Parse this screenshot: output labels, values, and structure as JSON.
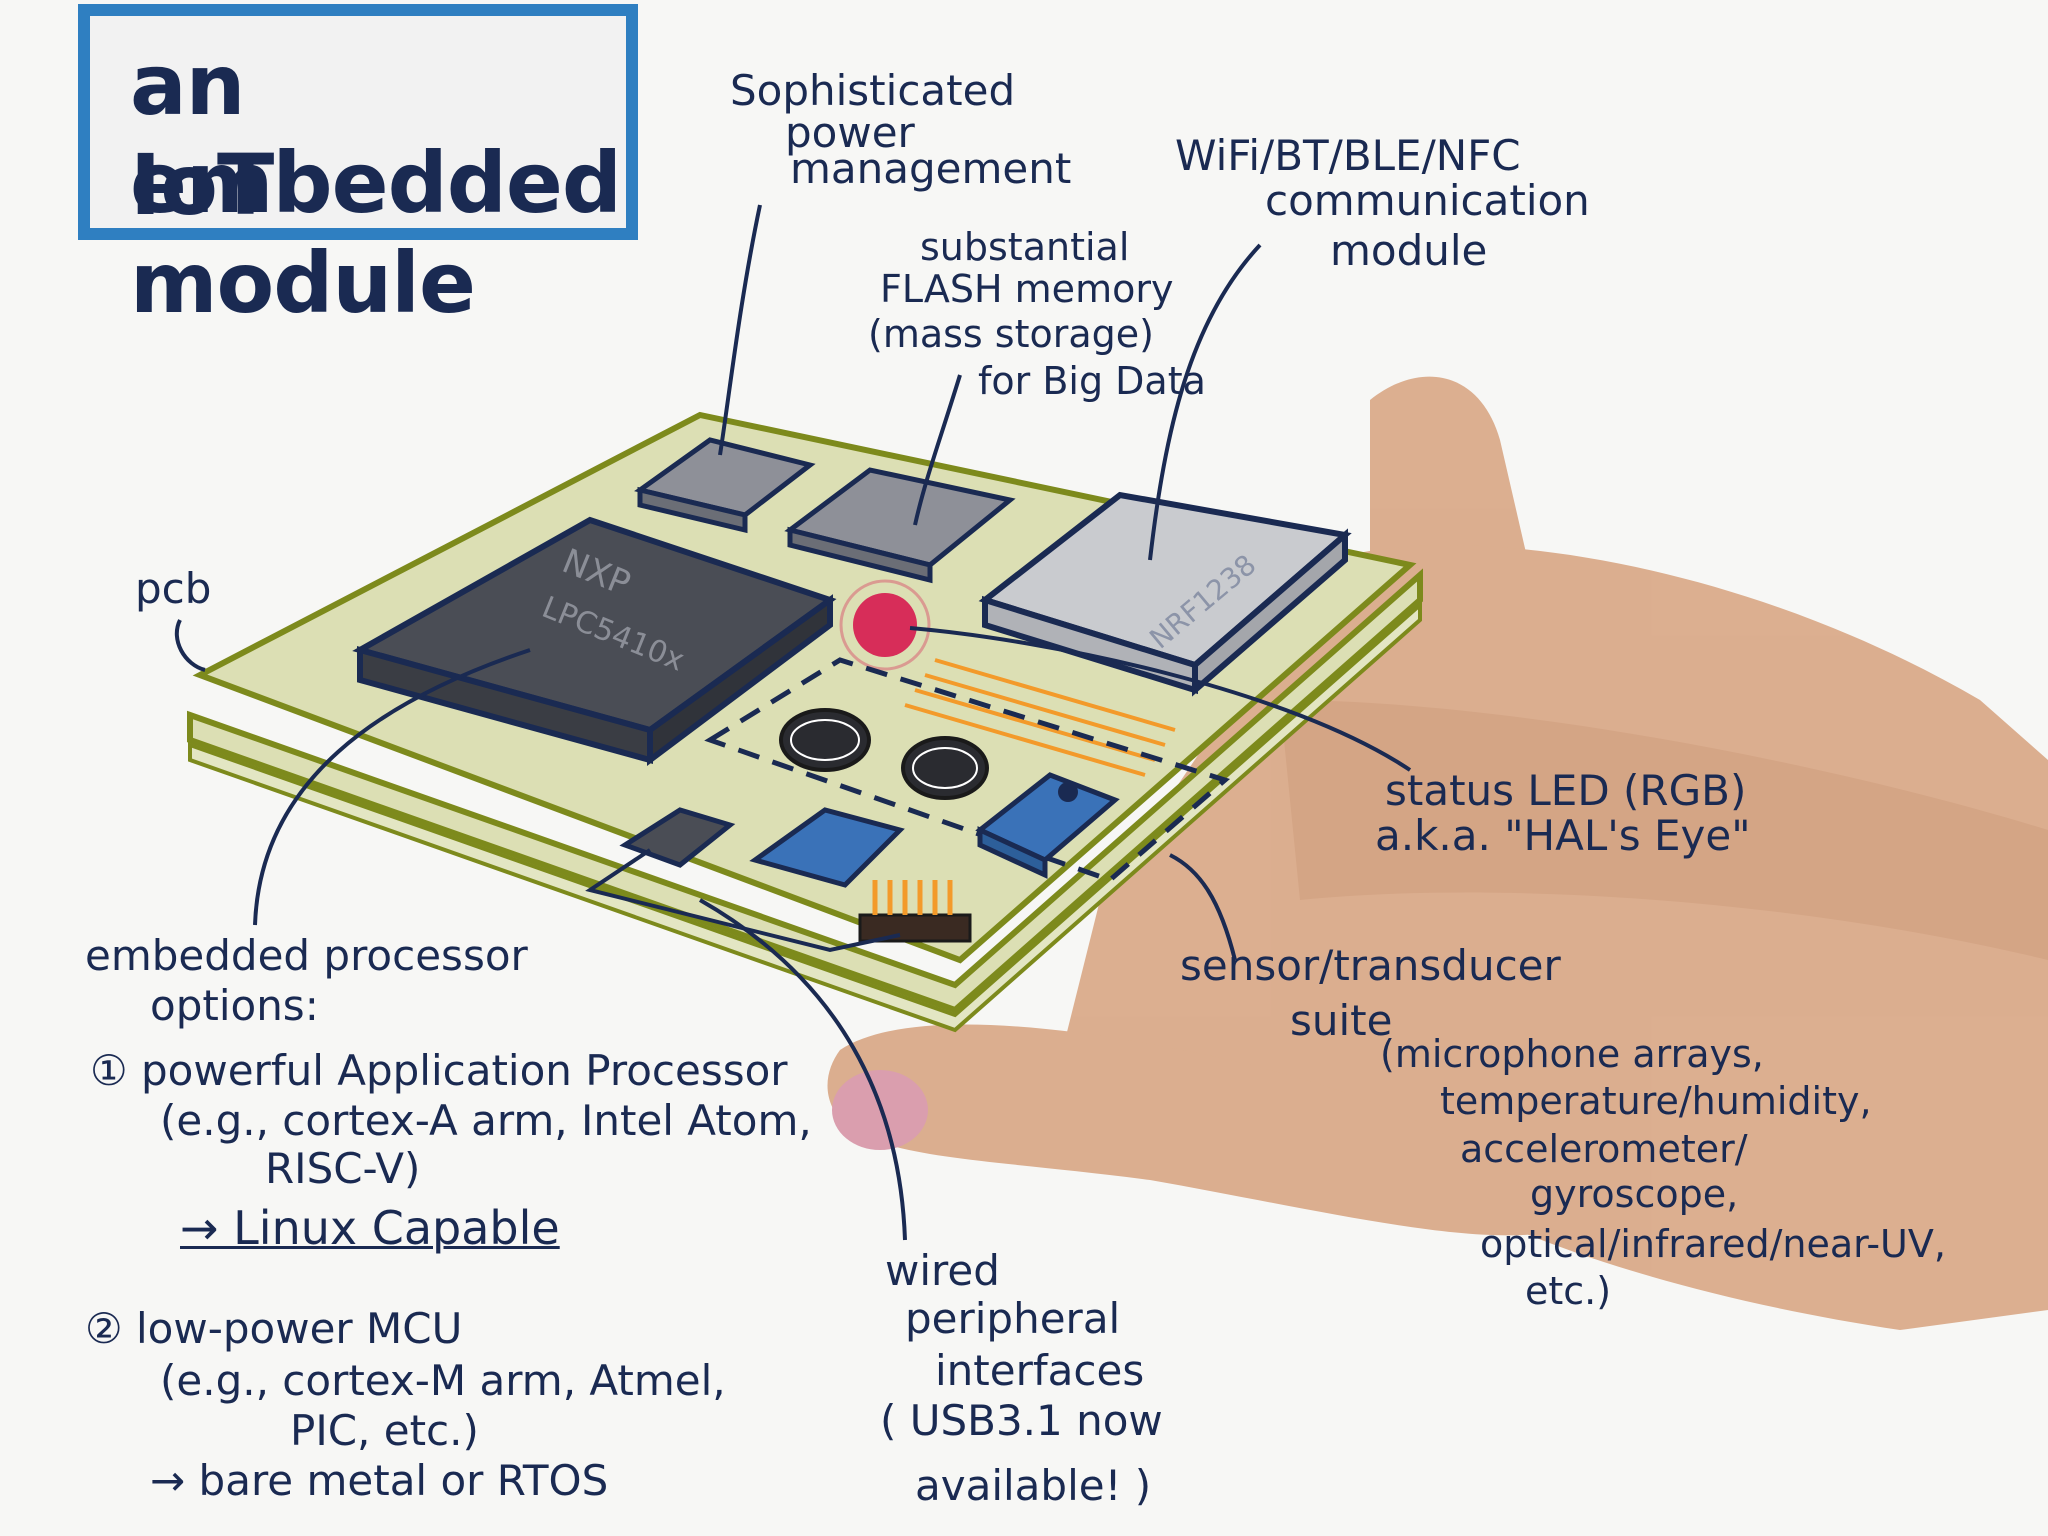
{
  "title": {
    "line1": "an embedded",
    "line2": "IoT module"
  },
  "labels": {
    "power_management": [
      "Sophisticated",
      "power",
      "management"
    ],
    "wifi_module": [
      "WiFi/BT/BLE/NFC",
      "communication",
      "module"
    ],
    "flash_memory": [
      "substantial",
      "FLASH memory",
      "(mass storage)",
      "for Big Data"
    ],
    "pcb": "pcb",
    "status_led": [
      "status LED (RGB)",
      "a.k.a. \"HAL's Eye\""
    ],
    "sensor_suite": [
      "sensor/transducer",
      "suite",
      "(microphone arrays,",
      "temperature/humidity,",
      "accelerometer/",
      "gyroscope,",
      "optical/infrared/near-UV,",
      "etc.)"
    ],
    "processor_heading": [
      "embedded processor",
      "options:"
    ],
    "option1": [
      "① powerful Application Processor",
      "(e.g., cortex-A arm, Intel Atom,",
      "RISC-V)",
      "→ Linux Capable"
    ],
    "option2": [
      "② low-power MCU",
      "(e.g., cortex-M arm, Atmel,",
      "PIC, etc.)",
      "→ bare metal or RTOS"
    ],
    "wired": [
      "wired",
      "peripheral",
      "interfaces",
      "( USB3.1 now",
      "available! )"
    ]
  },
  "chip_text": {
    "processor_brand": "NXP",
    "processor_part": "LPC5410x",
    "radio_part": "NRF1238"
  },
  "colors": {
    "ink": "#1a2a52",
    "title_border": "#2f7fc1",
    "pcb_fill": "#dcdfb4",
    "pcb_edge": "#7d8a1c",
    "chip_dark": "#4a4d55",
    "chip_light": "#c9cbcf",
    "led": "#d6194f",
    "traces": "#f39a2a",
    "hand": "#d7a27e",
    "thumb_nail": "#d58fa2",
    "usb_blue": "#3a72b8"
  }
}
